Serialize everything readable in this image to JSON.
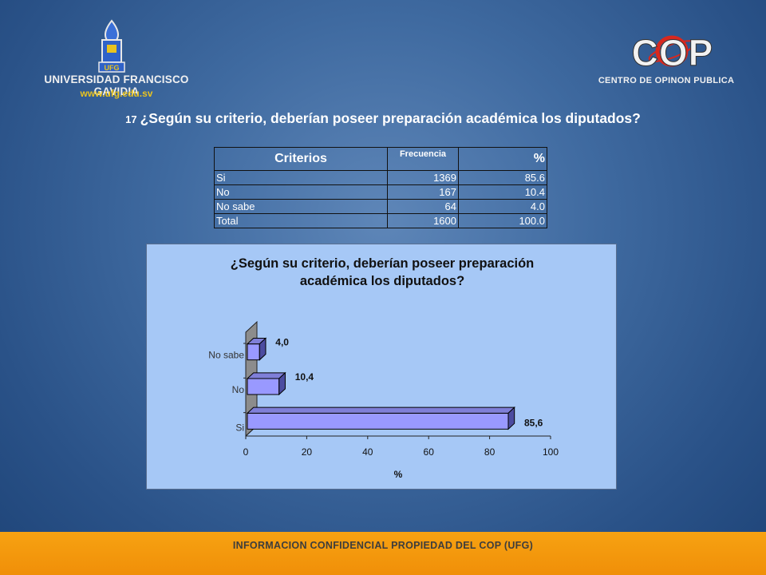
{
  "logos": {
    "ufg_emblem_text": "UFG",
    "ufg_name": "UNIVERSIDAD FRANCISCO GAVIDIA",
    "ufg_url": "www.ufg.edu.sv",
    "cop_mark_text": "COP",
    "cop_name": "CENTRO DE OPINON PUBLICA"
  },
  "question": {
    "number": "17",
    "text": "¿Según su criterio, deberían poseer preparación académica los diputados?"
  },
  "table": {
    "headers": [
      "Criterios",
      "Frecuencia",
      "%"
    ],
    "rows": [
      {
        "label": "Si",
        "freq": "1369",
        "pct": "85.6"
      },
      {
        "label": "No",
        "freq": "167",
        "pct": "10.4"
      },
      {
        "label": "No sabe",
        "freq": "64",
        "pct": "4.0"
      },
      {
        "label": "Total",
        "freq": "1600",
        "pct": "100.0"
      }
    ]
  },
  "chart_data": {
    "type": "bar",
    "orientation": "horizontal",
    "style": "3d",
    "title": "¿Según su criterio, deberían poseer preparación académica los diputados?",
    "title_lines": [
      "¿Según su criterio, deberían poseer preparación",
      "académica los diputados?"
    ],
    "categories": [
      "Si",
      "No",
      "No sabe"
    ],
    "values": [
      85.6,
      10.4,
      4.0
    ],
    "data_labels": [
      "85,6",
      "10,4",
      "4,0"
    ],
    "xlabel": "%",
    "ylabel": "",
    "xlim": [
      0,
      100
    ],
    "xticks": [
      0,
      20,
      40,
      60,
      80,
      100
    ],
    "grid": false,
    "colors": {
      "bar_front": "#9999ff",
      "bar_top": "#7f7fd8",
      "bar_side": "#4c4ca0",
      "wall": "#8c8c8c",
      "panel": "#a6c8f6"
    }
  },
  "footer": {
    "text": "INFORMACION CONFIDENCIAL PROPIEDAD DEL COP (UFG)"
  }
}
